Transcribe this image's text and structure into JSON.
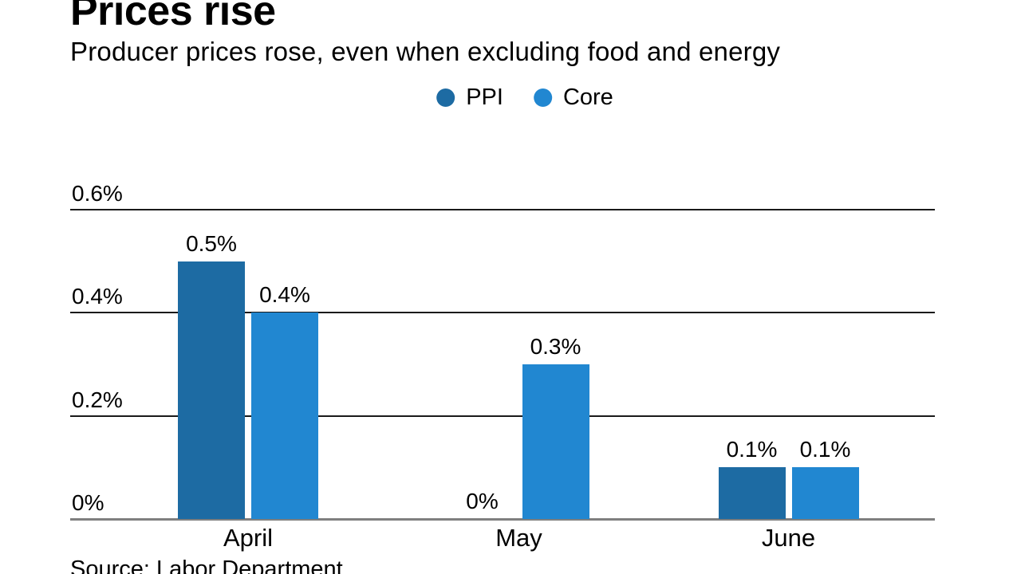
{
  "header": {
    "title": "Prices rise",
    "subtitle": "Producer prices rose, even when excluding food and energy"
  },
  "footer": {
    "source": "Source: Labor Department"
  },
  "chart_data": {
    "type": "bar",
    "title": "Prices rise",
    "subtitle": "Producer prices rose, even when excluding food and energy",
    "categories": [
      "April",
      "May",
      "June"
    ],
    "series": [
      {
        "name": "PPI",
        "color": "#1d6ba3",
        "values": [
          0.5,
          0,
          0.1
        ],
        "labels": [
          "0.5%",
          "0%",
          "0.1%"
        ]
      },
      {
        "name": "Core",
        "color": "#2187d1",
        "values": [
          0.4,
          0.3,
          0.1
        ],
        "labels": [
          "0.4%",
          "0.3%",
          "0.1%"
        ]
      }
    ],
    "unit": "%",
    "ylim": [
      0,
      0.6
    ],
    "yticks": [
      {
        "value": 0,
        "label": "0%"
      },
      {
        "value": 0.2,
        "label": "0.2%"
      },
      {
        "value": 0.4,
        "label": "0.4%"
      },
      {
        "value": 0.6,
        "label": "0.6%"
      }
    ],
    "grid": true,
    "legend_position": "top",
    "source": "Source: Labor Department"
  }
}
